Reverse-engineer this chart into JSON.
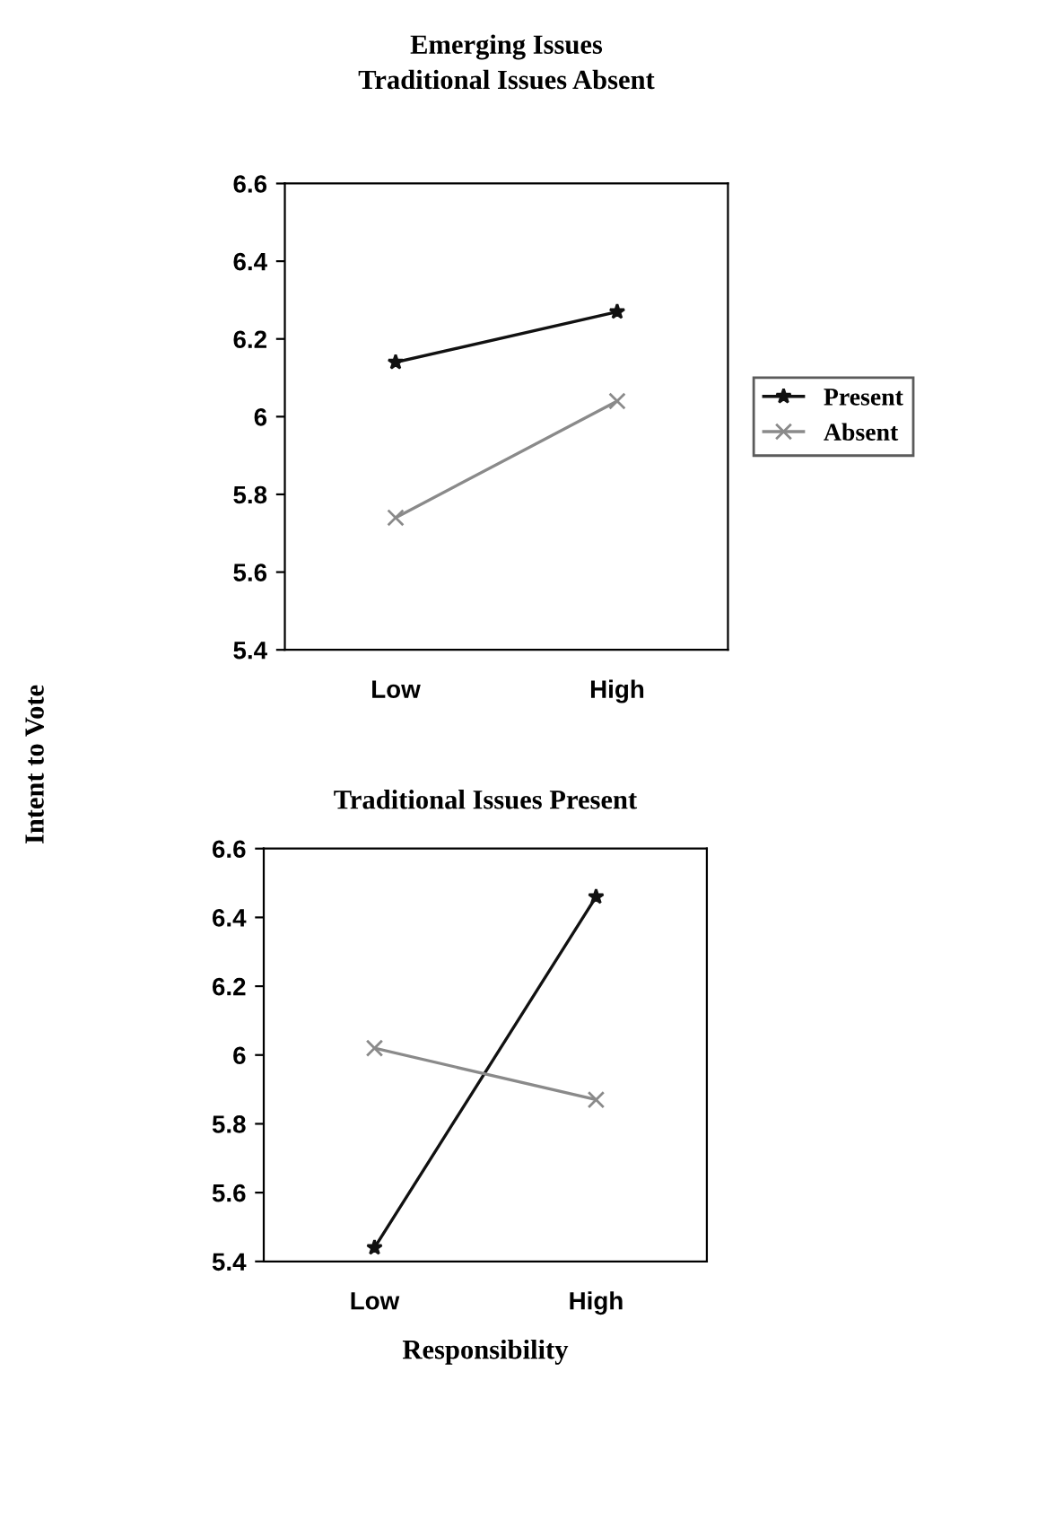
{
  "chart_data": [
    {
      "type": "line",
      "title": "Emerging Issues",
      "subtitle": "Traditional Issues Absent",
      "ylabel": "Intent to Vote",
      "categories": [
        "Low",
        "High"
      ],
      "ylim": [
        5.4,
        6.6
      ],
      "yticks": [
        5.4,
        5.6,
        5.8,
        6,
        6.2,
        6.4,
        6.6
      ],
      "grid": false,
      "legend": "right",
      "series": [
        {
          "name": "Present",
          "color": "#111111",
          "marker": "star",
          "values": [
            6.14,
            6.27
          ]
        },
        {
          "name": "Absent",
          "color": "#8a8a8a",
          "marker": "cross",
          "values": [
            5.74,
            6.04
          ]
        }
      ]
    },
    {
      "type": "line",
      "title": "Traditional Issues Present",
      "xlabel": "Responsibility",
      "categories": [
        "Low",
        "High"
      ],
      "ylim": [
        5.4,
        6.6
      ],
      "yticks": [
        5.4,
        5.6,
        5.8,
        6,
        6.2,
        6.4,
        6.6
      ],
      "grid": false,
      "series": [
        {
          "color": "#111111",
          "marker": "star",
          "values": [
            5.44,
            6.46
          ]
        },
        {
          "color": "#8a8a8a",
          "marker": "cross",
          "values": [
            6.02,
            5.87
          ]
        }
      ]
    }
  ]
}
